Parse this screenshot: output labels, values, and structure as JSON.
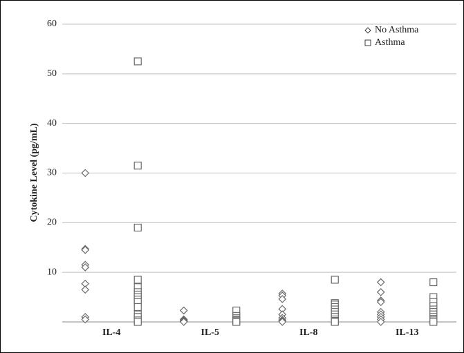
{
  "chart_data": {
    "type": "strip",
    "y_label": "Cytokine Level (pg/mL)",
    "categories": [
      "IL-4",
      "IL-5",
      "IL-8",
      "IL-13"
    ],
    "series": [
      {
        "name": "No Asthma",
        "marker": "diamond",
        "color": "#6b6b6b",
        "values": [
          [
            30,
            14.7,
            14.5,
            11.5,
            11,
            7.7,
            6.5,
            1,
            0.5
          ],
          [
            2.3,
            0.5,
            0.3,
            0.2,
            0.1,
            0
          ],
          [
            5.7,
            5.3,
            4.6,
            2.6,
            1.5,
            0.8,
            0.4,
            0.2,
            0
          ],
          [
            8,
            6,
            4.3,
            4,
            2,
            1.5,
            1,
            0.5,
            0
          ]
        ]
      },
      {
        "name": "Asthma",
        "marker": "square",
        "color": "#6b6b6b",
        "values": [
          [
            52.5,
            31.5,
            19,
            8.5,
            7,
            6,
            5.5,
            5,
            4.5,
            4,
            3,
            1.5,
            1,
            0.3,
            0
          ],
          [
            2.3,
            1.2,
            0.8,
            0.5,
            0.3,
            0.1,
            0
          ],
          [
            8.5,
            3.8,
            3.5,
            3,
            2.5,
            2,
            1.5,
            1,
            0.5,
            0.2,
            0
          ],
          [
            8,
            5,
            4,
            3.2,
            2.5,
            2,
            1.5,
            1,
            0.6,
            0.3,
            0
          ]
        ]
      }
    ],
    "ylim": [
      0,
      60
    ],
    "yticks": [
      10,
      20,
      30,
      40,
      50,
      60
    ],
    "grid": true,
    "legend": "top-right"
  }
}
